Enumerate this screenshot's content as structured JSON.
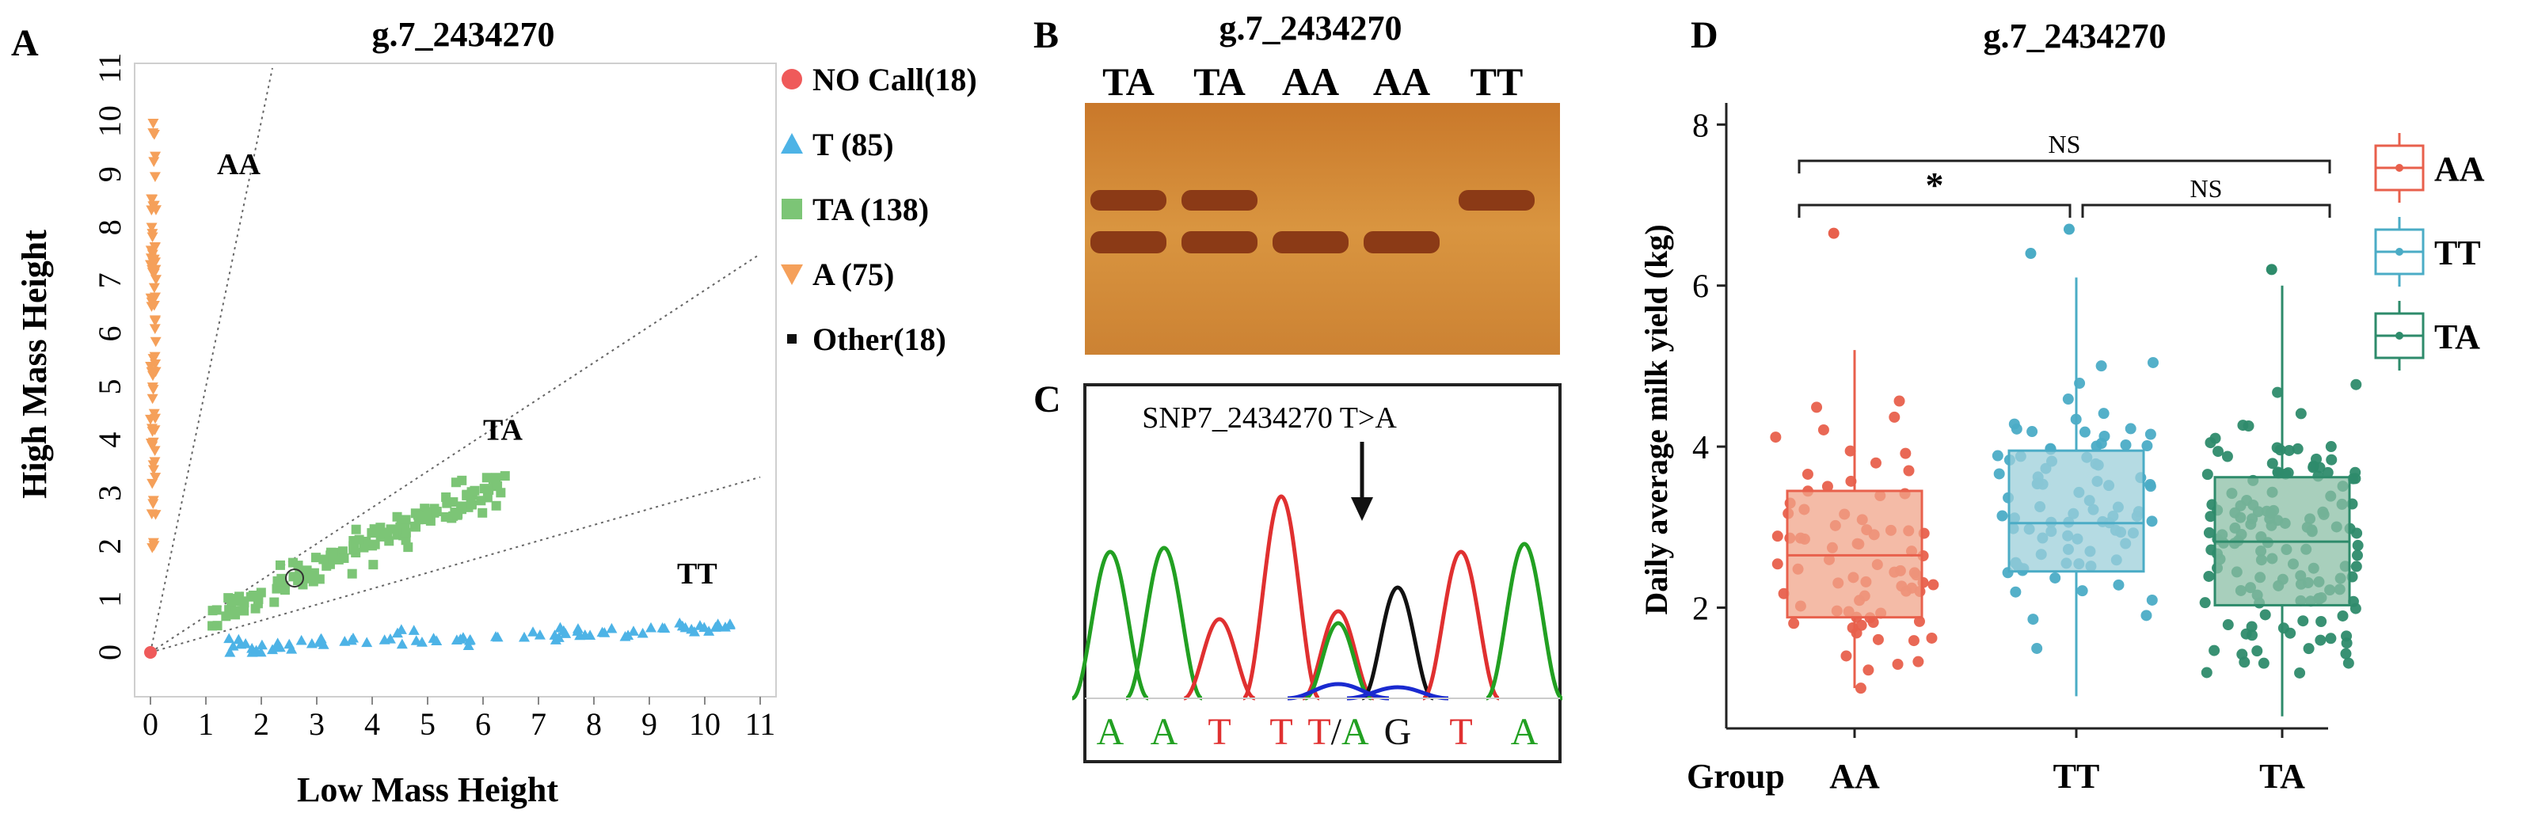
{
  "panels": {
    "A": {
      "letter": "A",
      "chart_data": {
        "type": "scatter",
        "title": "g.7_2434270",
        "xlabel": "Low Mass Height",
        "ylabel": "High Mass Height",
        "xlim": [
          0,
          11
        ],
        "ylim": [
          0,
          11
        ],
        "xticks": [
          "0",
          "1",
          "2",
          "3",
          "4",
          "5",
          "6",
          "7",
          "8",
          "9",
          "10",
          "11"
        ],
        "yticks": [
          "0",
          "1",
          "2",
          "3",
          "4",
          "5",
          "6",
          "7",
          "8",
          "9",
          "10",
          "11"
        ],
        "cluster_labels": [
          {
            "text": "AA",
            "x": 1.2,
            "y": 9.0
          },
          {
            "text": "TA",
            "x": 6.0,
            "y": 4.0
          },
          {
            "text": "TT",
            "x": 9.5,
            "y": 1.3
          }
        ],
        "legend_position": "right",
        "legend": [
          {
            "label": "NO Call(18)",
            "color": "#ef5a5a",
            "marker": "circle"
          },
          {
            "label": "T (85)",
            "color": "#4db3e6",
            "marker": "triangle-up"
          },
          {
            "label": "TA (138)",
            "color": "#7cc576",
            "marker": "square"
          },
          {
            "label": "A (75)",
            "color": "#f5a05a",
            "marker": "triangle-down"
          },
          {
            "label": "Other(18)",
            "color": "#111111",
            "marker": "small-square"
          }
        ],
        "series": [
          {
            "name": "NO Call(18)",
            "color": "#ef5a5a",
            "marker": "circle",
            "count": 18,
            "x_range": [
              0,
              0.05
            ],
            "y_range": [
              0,
              0.05
            ]
          },
          {
            "name": "T (85)",
            "color": "#4db3e6",
            "marker": "triangle-up",
            "count": 85,
            "x_range": [
              1.3,
              10.5
            ],
            "y_range": [
              0.0,
              0.8
            ]
          },
          {
            "name": "TA (138)",
            "color": "#7cc576",
            "marker": "square",
            "count": 138,
            "x_range": [
              1.0,
              6.5
            ],
            "y_range": [
              0.5,
              3.4
            ]
          },
          {
            "name": "A (75)",
            "color": "#f5a05a",
            "marker": "triangle-down",
            "count": 75,
            "x_range": [
              0,
              0.1
            ],
            "y_range": [
              1.9,
              10.0
            ]
          },
          {
            "name": "Other(18)",
            "color": "#111111",
            "marker": "small-square",
            "count": 18
          }
        ],
        "guide_lines": "dotted boundary lines from origin separating clusters",
        "grid": false
      }
    },
    "B": {
      "letter": "B",
      "title": "g.7_2434270",
      "lanes": [
        "TA",
        "TA",
        "AA",
        "AA",
        "TT"
      ],
      "band_color": "#8b3a16",
      "gel_color": "#d48a35"
    },
    "C": {
      "letter": "C",
      "annotation": "SNP7_2434270 T>A",
      "bases": [
        "A",
        "A",
        "T",
        "T",
        "T/A",
        "G",
        "T",
        "A"
      ],
      "base_colors": {
        "A": "#22a022",
        "T": "#e03030",
        "G": "#111111",
        "T/A": "#e03030"
      },
      "traces": {
        "A": "#22a022",
        "T": "#e03030",
        "G": "#111111",
        "C": "#1a2ad0"
      }
    },
    "D": {
      "letter": "D",
      "chart_data": {
        "type": "box",
        "title": "g.7_2434270",
        "xlabel": "Group",
        "ylabel": "Daily average milk yield (kg)",
        "categories": [
          "AA",
          "TT",
          "TA"
        ],
        "ylim": [
          0.5,
          8.2
        ],
        "yticks": [
          2,
          4,
          6,
          8
        ],
        "grid": false,
        "legend_position": "right",
        "legend": [
          {
            "label": "AA",
            "color": "#e8604c"
          },
          {
            "label": "TT",
            "color": "#4bacc6"
          },
          {
            "label": "TA",
            "color": "#2e8b6b"
          }
        ],
        "boxes": [
          {
            "name": "AA",
            "color": "#e8604c",
            "fill": "#f0a48a",
            "min": 1.0,
            "q1": 1.88,
            "median": 2.65,
            "q3": 3.45,
            "max": 5.2,
            "outliers": [
              6.65
            ]
          },
          {
            "name": "TT",
            "color": "#4bacc6",
            "fill": "#9ccfd9",
            "min": 0.9,
            "q1": 2.45,
            "median": 3.05,
            "q3": 3.95,
            "max": 6.1,
            "outliers": [
              6.4,
              6.7
            ]
          },
          {
            "name": "TA",
            "color": "#2e8b6b",
            "fill": "#8bbfa6",
            "min": 0.65,
            "q1": 2.03,
            "median": 2.82,
            "q3": 3.62,
            "max": 6.0,
            "outliers": [
              6.2
            ]
          }
        ],
        "point_counts": [
          75,
          85,
          138
        ],
        "significance": [
          {
            "pair": [
              "AA",
              "TT"
            ],
            "label": "*",
            "y": 7.0
          },
          {
            "pair": [
              "TT",
              "TA"
            ],
            "label": "NS",
            "y": 7.0
          },
          {
            "pair": [
              "AA",
              "TA"
            ],
            "label": "NS",
            "y": 7.55
          }
        ]
      }
    }
  }
}
